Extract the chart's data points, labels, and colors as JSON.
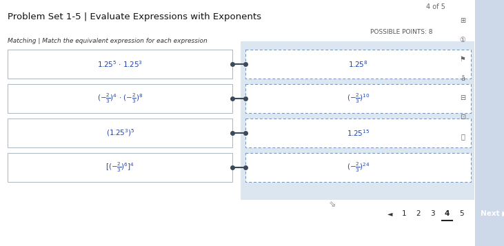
{
  "title": "Problem Set 1-5 | Evaluate Expressions with Exponents",
  "page_indicator": "4 of 5",
  "possible_points": "POSSIBLE POINTS: 8",
  "subtitle": "Matching | Match the equivalent expression for each expression",
  "outer_bg": "#cdd8e8",
  "inner_bg": "#ffffff",
  "right_panel_bg": "#dce6f0",
  "left_box_bg": "#ffffff",
  "right_box_bg": "#ffffff",
  "left_box_border": "#aab5c5",
  "right_box_border": "#7090b8",
  "connector_color": "#3a4a5a",
  "text_color": "#2244aa",
  "title_color": "#111111",
  "subtitle_color": "#333333",
  "points_color": "#555555",
  "nav_bg": "#2288ee",
  "nav_text": "#ffffff",
  "page_nums": [
    "1",
    "2",
    "3",
    "4",
    "5"
  ],
  "active_page": 4,
  "left_labels": [
    "1.25$^{5}$ $\\cdot$ 1.25$^{3}$",
    "($-\\frac{2}{3}$)$^{4}$ $\\cdot$ ($-\\frac{2}{3}$)$^{8}$",
    "(1.25$^{3}$)$^{5}$",
    "[($-\\frac{2}{3}$)$^{6}$]$^{4}$"
  ],
  "right_labels": [
    "1.25$^{8}$",
    "($-\\frac{2}{3}$)$^{10}$",
    "1.25$^{15}$",
    "($-\\frac{2}{3}$)$^{24}$"
  ]
}
